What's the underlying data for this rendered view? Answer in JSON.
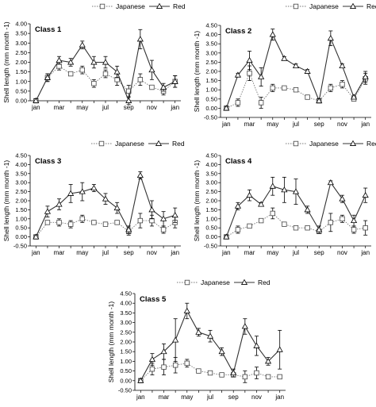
{
  "figure": {
    "legend": {
      "series_a": "Japanese",
      "series_b": "Red"
    },
    "ylabel": "Shell length (mm month -1)"
  },
  "chart_data": [
    {
      "type": "line",
      "title": "Class 1",
      "x": [
        "jan",
        "feb",
        "mar",
        "apr",
        "may",
        "jun",
        "jul",
        "aug",
        "sep",
        "oct",
        "nov",
        "dec",
        "jan"
      ],
      "xticks": [
        "jan",
        "mar",
        "may",
        "jul",
        "sep",
        "nov",
        "jan"
      ],
      "ylim": [
        0.0,
        4.0
      ],
      "yticks": [
        "0.00",
        "0.50",
        "1.00",
        "1.50",
        "2.00",
        "2.50",
        "3.00",
        "3.50",
        "4.00"
      ],
      "ylabel": "Shell length (mm month -1)",
      "legend": "top-right",
      "series": [
        {
          "name": "Japanese",
          "values": [
            0.0,
            1.2,
            1.8,
            1.4,
            1.6,
            0.9,
            1.4,
            1.1,
            0.5,
            1.1,
            0.7,
            0.5,
            1.0
          ],
          "err": [
            0.1,
            0.2,
            0.2,
            0.1,
            0.2,
            0.2,
            0.2,
            0.3,
            0.3,
            0.3,
            0.1,
            0.2,
            0.3
          ]
        },
        {
          "name": "Red",
          "values": [
            0.0,
            1.2,
            2.1,
            2.0,
            2.9,
            2.0,
            2.0,
            1.5,
            0.0,
            3.2,
            1.6,
            0.7,
            1.0
          ],
          "err": [
            0.1,
            0.2,
            0.2,
            0.2,
            0.2,
            0.3,
            0.3,
            0.3,
            0.2,
            0.5,
            0.5,
            0.2,
            0.3
          ]
        }
      ]
    },
    {
      "type": "line",
      "title": "Class 2",
      "x": [
        "jan",
        "feb",
        "mar",
        "apr",
        "may",
        "jun",
        "jul",
        "aug",
        "sep",
        "oct",
        "nov",
        "dec",
        "jan"
      ],
      "xticks": [
        "jan",
        "mar",
        "may",
        "jul",
        "sep",
        "nov",
        "jan"
      ],
      "ylim": [
        -0.5,
        4.5
      ],
      "yticks": [
        "-0.50",
        "0.00",
        "0.50",
        "1.00",
        "1.50",
        "2.00",
        "2.50",
        "3.00",
        "3.50",
        "4.00",
        "4.50"
      ],
      "ylabel": "Shell length (mm month -1)",
      "legend": "top-right",
      "series": [
        {
          "name": "Japanese",
          "values": [
            0.0,
            0.3,
            1.9,
            0.3,
            1.1,
            1.1,
            1.0,
            0.6,
            0.4,
            1.1,
            1.3,
            0.5,
            1.6
          ],
          "err": [
            0.1,
            0.2,
            0.4,
            0.3,
            0.2,
            0.1,
            0.1,
            0.1,
            0.1,
            0.2,
            0.2,
            0.1,
            0.3
          ]
        },
        {
          "name": "Red",
          "values": [
            0.0,
            1.8,
            2.6,
            1.7,
            4.0,
            2.7,
            2.3,
            2.0,
            0.4,
            3.8,
            2.3,
            0.6,
            1.7
          ],
          "err": [
            0.1,
            0.1,
            0.5,
            0.5,
            0.3,
            0.1,
            0.1,
            0.1,
            0.1,
            0.4,
            0.1,
            0.1,
            0.3
          ]
        }
      ]
    },
    {
      "type": "line",
      "title": "Class 3",
      "x": [
        "jan",
        "feb",
        "mar",
        "apr",
        "may",
        "jun",
        "jul",
        "aug",
        "sep",
        "oct",
        "nov",
        "dec",
        "jan"
      ],
      "xticks": [
        "jan",
        "mar",
        "may",
        "jul",
        "sep",
        "nov",
        "jan"
      ],
      "ylim": [
        -0.5,
        4.5
      ],
      "yticks": [
        "-0.50",
        "0.00",
        "0.50",
        "1.00",
        "1.50",
        "2.00",
        "2.50",
        "3.00",
        "3.50",
        "4.00",
        "4.50"
      ],
      "ylabel": "Shell length (mm month -1)",
      "legend": "top-right",
      "series": [
        {
          "name": "Japanese",
          "values": [
            0.0,
            0.8,
            0.8,
            0.7,
            1.0,
            0.8,
            0.7,
            0.8,
            0.3,
            0.9,
            0.9,
            0.4,
            0.8
          ],
          "err": [
            0.1,
            0.1,
            0.2,
            0.2,
            0.2,
            0.1,
            0.1,
            0.1,
            0.2,
            0.4,
            0.3,
            0.2,
            0.3
          ]
        },
        {
          "name": "Red",
          "values": [
            0.0,
            1.4,
            1.8,
            2.4,
            2.5,
            2.7,
            2.1,
            1.6,
            0.4,
            3.4,
            1.5,
            1.0,
            1.2
          ],
          "err": [
            0.1,
            0.3,
            0.3,
            0.5,
            0.5,
            0.2,
            0.3,
            0.3,
            0.2,
            0.2,
            0.5,
            0.4,
            0.4
          ]
        }
      ]
    },
    {
      "type": "line",
      "title": "Class 4",
      "x": [
        "jan",
        "feb",
        "mar",
        "apr",
        "may",
        "jun",
        "jul",
        "aug",
        "sep",
        "oct",
        "nov",
        "dec",
        "jan"
      ],
      "xticks": [
        "jan",
        "mar",
        "may",
        "jul",
        "sep",
        "nov",
        "jan"
      ],
      "ylim": [
        -0.5,
        4.5
      ],
      "yticks": [
        "-0.50",
        "0.00",
        "0.50",
        "1.00",
        "1.50",
        "2.00",
        "2.50",
        "3.00",
        "3.50",
        "4.00",
        "4.50"
      ],
      "ylabel": "Shell length (mm month -1)",
      "legend": "top-right",
      "series": [
        {
          "name": "Japanese",
          "values": [
            0.0,
            0.4,
            0.6,
            0.9,
            1.3,
            0.7,
            0.5,
            0.5,
            0.3,
            0.8,
            1.0,
            0.4,
            0.5
          ],
          "err": [
            0.1,
            0.2,
            0.1,
            0.1,
            0.3,
            0.1,
            0.1,
            0.1,
            0.1,
            0.5,
            0.2,
            0.2,
            0.4
          ]
        },
        {
          "name": "Red",
          "values": [
            0.0,
            1.7,
            2.3,
            1.8,
            2.8,
            2.6,
            2.5,
            1.5,
            0.4,
            3.0,
            2.1,
            0.9,
            2.3
          ],
          "err": [
            0.1,
            0.2,
            0.3,
            0.1,
            0.5,
            0.7,
            0.7,
            0.2,
            0.2,
            0.1,
            0.2,
            0.3,
            0.4
          ]
        }
      ]
    },
    {
      "type": "line",
      "title": "Class 5",
      "x": [
        "jan",
        "feb",
        "mar",
        "apr",
        "may",
        "jun",
        "jul",
        "aug",
        "sep",
        "oct",
        "nov",
        "dec",
        "jan"
      ],
      "xticks": [
        "jan",
        "mar",
        "may",
        "jul",
        "sep",
        "nov",
        "jan"
      ],
      "ylim": [
        -0.5,
        4.5
      ],
      "yticks": [
        "-0.50",
        "0.00",
        "0.50",
        "1.00",
        "1.50",
        "2.00",
        "2.50",
        "3.00",
        "3.50",
        "4.00",
        "4.50"
      ],
      "ylabel": "Shell length (mm month -1)",
      "legend": "top-center",
      "series": [
        {
          "name": "Japanese",
          "values": [
            0.0,
            0.6,
            0.7,
            0.8,
            0.9,
            0.5,
            0.4,
            0.3,
            0.3,
            0.2,
            0.4,
            0.2,
            0.2
          ],
          "err": [
            0.1,
            0.3,
            0.4,
            0.4,
            0.2,
            0.1,
            0.1,
            0.1,
            0.1,
            0.3,
            0.3,
            0.1,
            0.1
          ]
        },
        {
          "name": "Red",
          "values": [
            0.0,
            1.1,
            1.5,
            2.1,
            3.6,
            2.5,
            2.3,
            1.5,
            0.4,
            2.8,
            1.8,
            1.0,
            1.6
          ],
          "err": [
            0.1,
            0.3,
            0.4,
            1.1,
            0.4,
            0.2,
            0.3,
            0.2,
            0.2,
            0.4,
            0.5,
            0.2,
            1.0
          ]
        }
      ]
    }
  ]
}
